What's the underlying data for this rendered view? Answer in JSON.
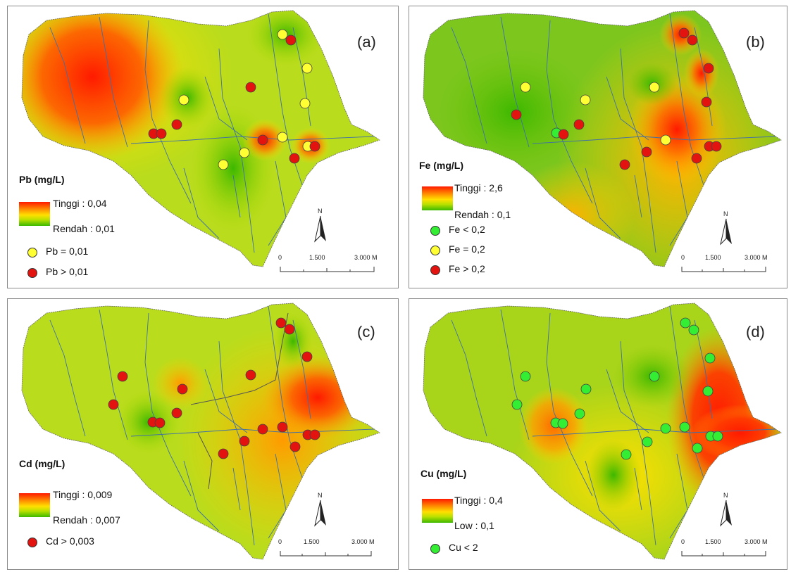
{
  "panels": [
    {
      "id": "a",
      "label": "(a)",
      "legend_title": "Pb (mg/L)",
      "high_label": "Tinggi : 0,04",
      "low_label": "Rendah : 0,01",
      "symbols": [
        {
          "color": "#ffff33",
          "label": "Pb = 0,01"
        },
        {
          "color": "#e3140f",
          "label": "Pb > 0,01"
        }
      ],
      "north": "N",
      "scale": {
        "t0": "0",
        "t1": "1.500",
        "t2": "3.000 M"
      }
    },
    {
      "id": "b",
      "label": "(b)",
      "legend_title": "Fe (mg/L)",
      "high_label": "Tinggi : 2,6",
      "low_label": "Rendah : 0,1",
      "symbols": [
        {
          "color": "#33ee33",
          "label": "Fe < 0,2"
        },
        {
          "color": "#ffff33",
          "label": "Fe = 0,2"
        },
        {
          "color": "#e3140f",
          "label": "Fe > 0,2"
        }
      ],
      "north": "N",
      "scale": {
        "t0": "0",
        "t1": "1.500",
        "t2": "3.000 M"
      }
    },
    {
      "id": "c",
      "label": "(c)",
      "legend_title": "Cd (mg/L)",
      "high_label": "Tinggi : 0,009",
      "low_label": "Rendah : 0,007",
      "symbols": [
        {
          "color": "#e3140f",
          "label": "Cd > 0,003"
        }
      ],
      "north": "N",
      "scale": {
        "t0": "0",
        "t1": "1.500",
        "t2": "3.000 M"
      }
    },
    {
      "id": "d",
      "label": "(d)",
      "legend_title": "Cu (mg/L)",
      "high_label": "Tinggi : 0,4",
      "low_label": "Low : 0,1",
      "symbols": [
        {
          "color": "#33ee33",
          "label": "Cu < 2"
        }
      ],
      "north": "N",
      "scale": {
        "t0": "0",
        "t1": "1.500",
        "t2": "3.000 M"
      }
    }
  ],
  "colors": {
    "high": "#ff1a00",
    "mid": "#ffe000",
    "low": "#3cb800",
    "river": "#3f6fa8",
    "point_red": "#e3140f",
    "point_yellow": "#ffff33",
    "point_green": "#33ee33"
  }
}
